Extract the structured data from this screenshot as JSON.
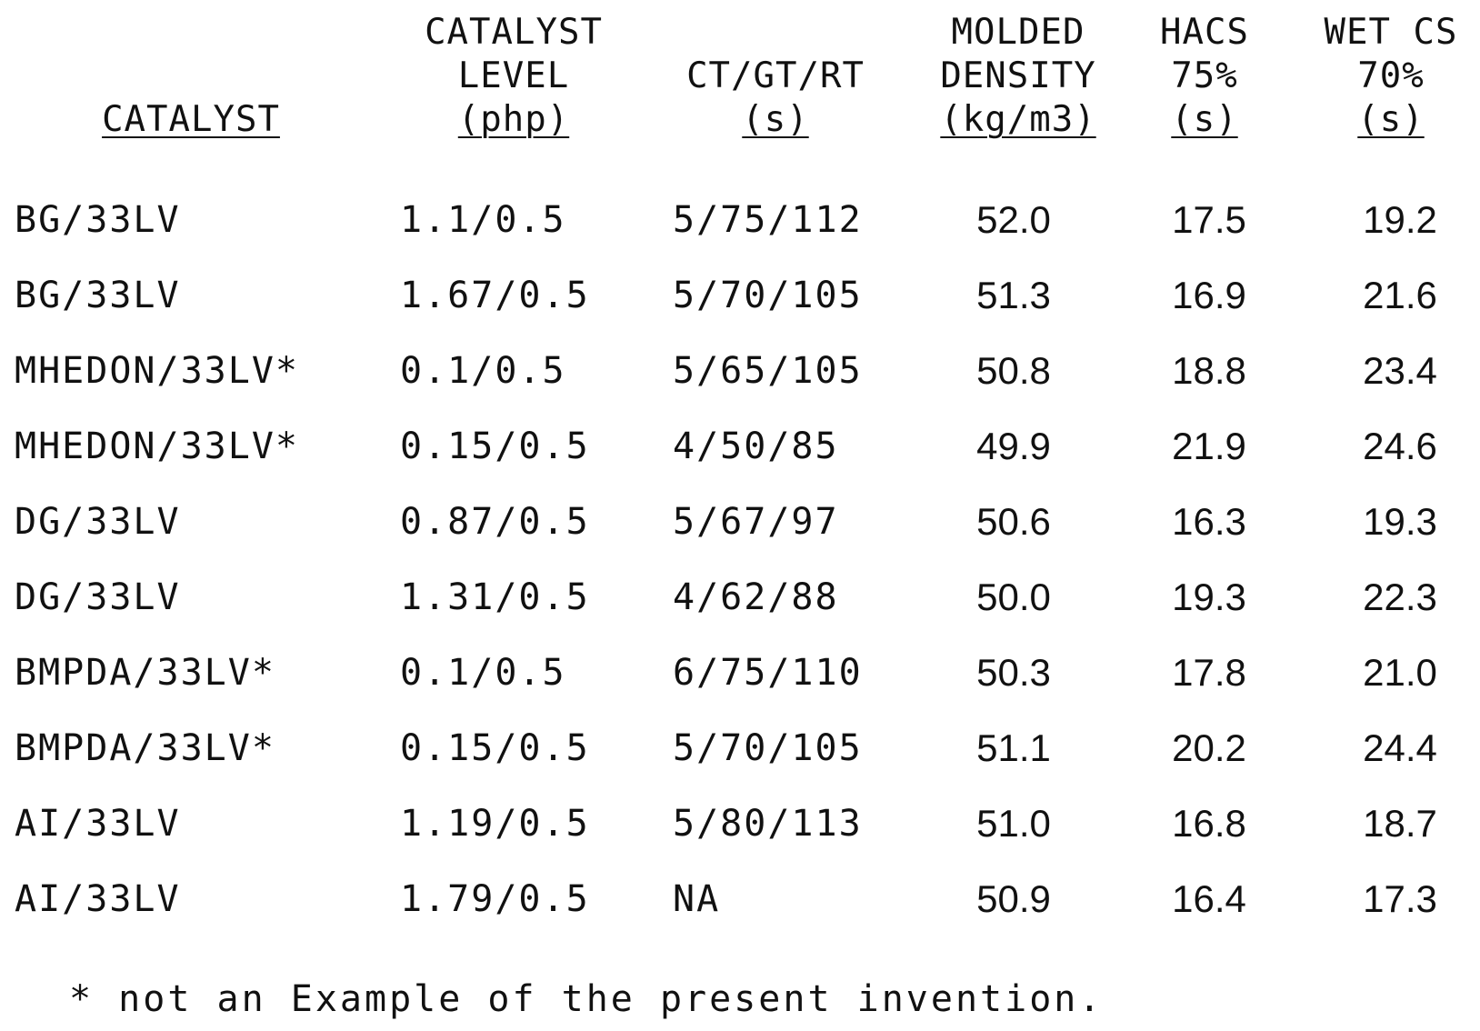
{
  "table": {
    "headers": {
      "catalyst": {
        "line3": "CATALYST"
      },
      "level": {
        "line1": "CATALYST",
        "line2": "LEVEL",
        "line3": "(php)"
      },
      "times": {
        "line2": "CT/GT/RT",
        "line3": "(s)"
      },
      "density": {
        "line1": "MOLDED",
        "line2": "DENSITY",
        "line3": "(kg/m3)"
      },
      "hacs": {
        "line1": "HACS",
        "line2": "75%",
        "line3": "(s)"
      },
      "wet": {
        "line1": "WET CS",
        "line2": "70%",
        "line3": "(s)"
      }
    },
    "rows": [
      {
        "catalyst": "BG/33LV",
        "level": "1.1/0.5",
        "times": "5/75/112",
        "density": "52.0",
        "hacs": "17.5",
        "wet": "19.2"
      },
      {
        "catalyst": "BG/33LV",
        "level": "1.67/0.5",
        "times": "5/70/105",
        "density": "51.3",
        "hacs": "16.9",
        "wet": "21.6"
      },
      {
        "catalyst": "MHEDON/33LV*",
        "level": "0.1/0.5",
        "times": "5/65/105",
        "density": "50.8",
        "hacs": "18.8",
        "wet": "23.4"
      },
      {
        "catalyst": "MHEDON/33LV*",
        "level": "0.15/0.5",
        "times": "4/50/85",
        "density": "49.9",
        "hacs": "21.9",
        "wet": "24.6"
      },
      {
        "catalyst": "DG/33LV",
        "level": "0.87/0.5",
        "times": "5/67/97",
        "density": "50.6",
        "hacs": "16.3",
        "wet": "19.3"
      },
      {
        "catalyst": "DG/33LV",
        "level": "1.31/0.5",
        "times": "4/62/88",
        "density": "50.0",
        "hacs": "19.3",
        "wet": "22.3"
      },
      {
        "catalyst": "BMPDA/33LV*",
        "level": "0.1/0.5",
        "times": "6/75/110",
        "density": "50.3",
        "hacs": "17.8",
        "wet": "21.0"
      },
      {
        "catalyst": "BMPDA/33LV*",
        "level": "0.15/0.5",
        "times": "5/70/105",
        "density": "51.1",
        "hacs": "20.2",
        "wet": "24.4"
      },
      {
        "catalyst": "AI/33LV",
        "level": "1.19/0.5",
        "times": "5/80/113",
        "density": "51.0",
        "hacs": "16.8",
        "wet": "18.7"
      },
      {
        "catalyst": "AI/33LV",
        "level": "1.79/0.5",
        "times": "NA",
        "density": "50.9",
        "hacs": "16.4",
        "wet": "17.3"
      }
    ]
  },
  "footnote": "* not an Example of the present invention."
}
